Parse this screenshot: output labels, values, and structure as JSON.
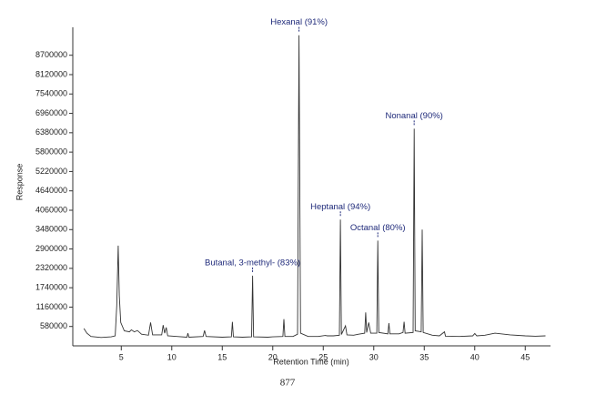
{
  "chart_data": {
    "type": "line",
    "x_label": "Retention Time (min)",
    "y_label": "Response",
    "footnote": "877",
    "xlim": [
      0.2,
      47.5
    ],
    "xticks": [
      5,
      10,
      15,
      20,
      25,
      30,
      35,
      40,
      45
    ],
    "ylim": [
      0,
      9400000
    ],
    "yticks": [
      580000,
      1160000,
      1740000,
      2320000,
      2900000,
      3480000,
      4060000,
      4640000,
      5220000,
      5800000,
      6380000,
      6960000,
      7540000,
      8120000,
      8700000
    ],
    "series": [
      {
        "color": "#333333",
        "x": [
          1.3,
          1.6,
          2.0,
          3.0,
          4.0,
          4.4,
          4.55,
          4.7,
          4.8,
          4.95,
          5.3,
          5.8,
          6.0,
          6.3,
          6.6,
          7.0,
          7.7,
          7.9,
          8.1,
          9.0,
          9.15,
          9.3,
          9.45,
          9.6,
          10.5,
          11.5,
          11.6,
          11.7,
          13.1,
          13.25,
          13.4,
          15.0,
          15.9,
          16.0,
          16.1,
          17.0,
          17.9,
          18.0,
          18.1,
          19.5,
          20.0,
          21.0,
          21.1,
          21.2,
          22.0,
          22.45,
          22.6,
          22.75,
          23.5,
          24.5,
          25.2,
          25.4,
          26.0,
          26.6,
          26.7,
          26.8,
          27.2,
          27.35,
          28.0,
          28.5,
          29.1,
          29.2,
          29.3,
          29.5,
          29.7,
          30.3,
          30.4,
          30.5,
          31.4,
          31.5,
          31.6,
          32.5,
          32.9,
          33.0,
          33.1,
          33.9,
          34.0,
          34.1,
          34.7,
          34.8,
          34.9,
          35.8,
          36.5,
          37.0,
          37.1,
          38.5,
          39.8,
          40.0,
          40.2,
          41.0,
          42.0,
          43.5,
          45.0,
          46.0,
          47.0
        ],
        "values": [
          520000,
          380000,
          280000,
          250000,
          270000,
          300000,
          1200000,
          3000000,
          1500000,
          700000,
          450000,
          420000,
          480000,
          420000,
          460000,
          350000,
          320000,
          700000,
          330000,
          330000,
          620000,
          380000,
          550000,
          300000,
          280000,
          260000,
          380000,
          260000,
          280000,
          460000,
          280000,
          260000,
          270000,
          720000,
          270000,
          260000,
          270000,
          2100000,
          270000,
          260000,
          270000,
          280000,
          800000,
          280000,
          280000,
          350000,
          9300000,
          380000,
          280000,
          280000,
          310000,
          300000,
          300000,
          320000,
          3780000,
          340000,
          600000,
          330000,
          320000,
          350000,
          380000,
          1000000,
          400000,
          700000,
          380000,
          380000,
          3150000,
          400000,
          360000,
          680000,
          360000,
          360000,
          400000,
          720000,
          380000,
          400000,
          6500000,
          450000,
          420000,
          3480000,
          400000,
          320000,
          300000,
          420000,
          290000,
          280000,
          300000,
          370000,
          300000,
          320000,
          380000,
          330000,
          300000,
          290000,
          300000
        ]
      }
    ],
    "annotations": [
      {
        "text": "Butanal, 3-methyl- (83%)",
        "x": 18.0,
        "y": 2100000
      },
      {
        "text": "Hexanal (91%)",
        "x": 22.6,
        "y": 9300000
      },
      {
        "text": "Heptanal (94%)",
        "x": 26.7,
        "y": 3780000
      },
      {
        "text": "Octanal (80%)",
        "x": 30.4,
        "y": 3150000
      },
      {
        "text": "Nonanal (90%)",
        "x": 34.0,
        "y": 6500000
      }
    ]
  }
}
